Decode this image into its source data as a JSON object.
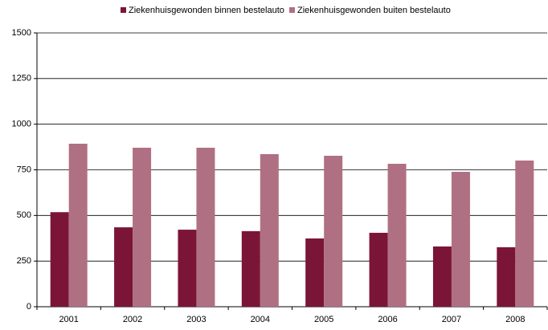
{
  "chart_data": {
    "type": "bar",
    "categories": [
      "2001",
      "2002",
      "2003",
      "2004",
      "2005",
      "2006",
      "2007",
      "2008"
    ],
    "series": [
      {
        "name": "Ziekenhuisgewonden binnen bestelauto",
        "color": "#7b1538",
        "values": [
          518,
          435,
          422,
          414,
          374,
          405,
          330,
          326
        ]
      },
      {
        "name": "Ziekenhuisgewonden buiten bestelauto",
        "color": "#b07083",
        "values": [
          893,
          871,
          871,
          836,
          827,
          783,
          739,
          801
        ]
      }
    ],
    "ylim": [
      0,
      1500
    ],
    "yticks": [
      0,
      250,
      500,
      750,
      1000,
      1250,
      1500
    ],
    "grid": true,
    "legend": "top"
  }
}
